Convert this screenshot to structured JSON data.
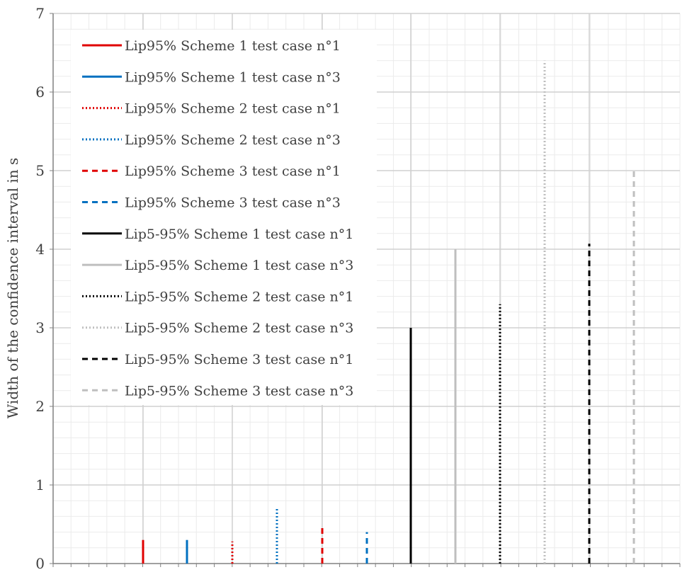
{
  "chart_data": {
    "type": "bar",
    "title": "",
    "ylabel": "Width of the confidence interval in s",
    "xlabel": "",
    "ylim": [
      0,
      7
    ],
    "yticks": [
      "0",
      "1",
      "2",
      "3",
      "4",
      "5",
      "6",
      "7"
    ],
    "grid": true,
    "legend_position": "top-left",
    "series": [
      {
        "name": "Lip95% Scheme 1 test case n°1",
        "value": 0.3,
        "color": "#E00000",
        "dash": "solid"
      },
      {
        "name": "Lip95% Scheme 1 test case n°3",
        "value": 0.3,
        "color": "#0070C0",
        "dash": "solid"
      },
      {
        "name": "Lip95% Scheme 2 test case n°1",
        "value": 0.28,
        "color": "#E00000",
        "dash": "dotted"
      },
      {
        "name": "Lip95% Scheme 2 test case n°3",
        "value": 0.72,
        "color": "#0070C0",
        "dash": "dotted"
      },
      {
        "name": "Lip95% Scheme 3 test case n°1",
        "value": 0.47,
        "color": "#E00000",
        "dash": "dashed"
      },
      {
        "name": "Lip95% Scheme 3 test case n°3",
        "value": 0.4,
        "color": "#0070C0",
        "dash": "dashed"
      },
      {
        "name": "Lip5-95% Scheme 1 test case n°1",
        "value": 3.0,
        "color": "#000000",
        "dash": "solid"
      },
      {
        "name": "Lip5-95% Scheme 1 test case n°3",
        "value": 4.0,
        "color": "#BFBFBF",
        "dash": "solid"
      },
      {
        "name": "Lip5-95% Scheme 2 test case n°1",
        "value": 3.3,
        "color": "#000000",
        "dash": "dotted"
      },
      {
        "name": "Lip5-95% Scheme 2 test case n°3",
        "value": 6.4,
        "color": "#BFBFBF",
        "dash": "dotted"
      },
      {
        "name": "Lip5-95% Scheme 3 test case n°1",
        "value": 4.07,
        "color": "#000000",
        "dash": "dashed"
      },
      {
        "name": "Lip5-95% Scheme 3 test case n°3",
        "value": 5.0,
        "color": "#BFBFBF",
        "dash": "dashed"
      }
    ]
  }
}
